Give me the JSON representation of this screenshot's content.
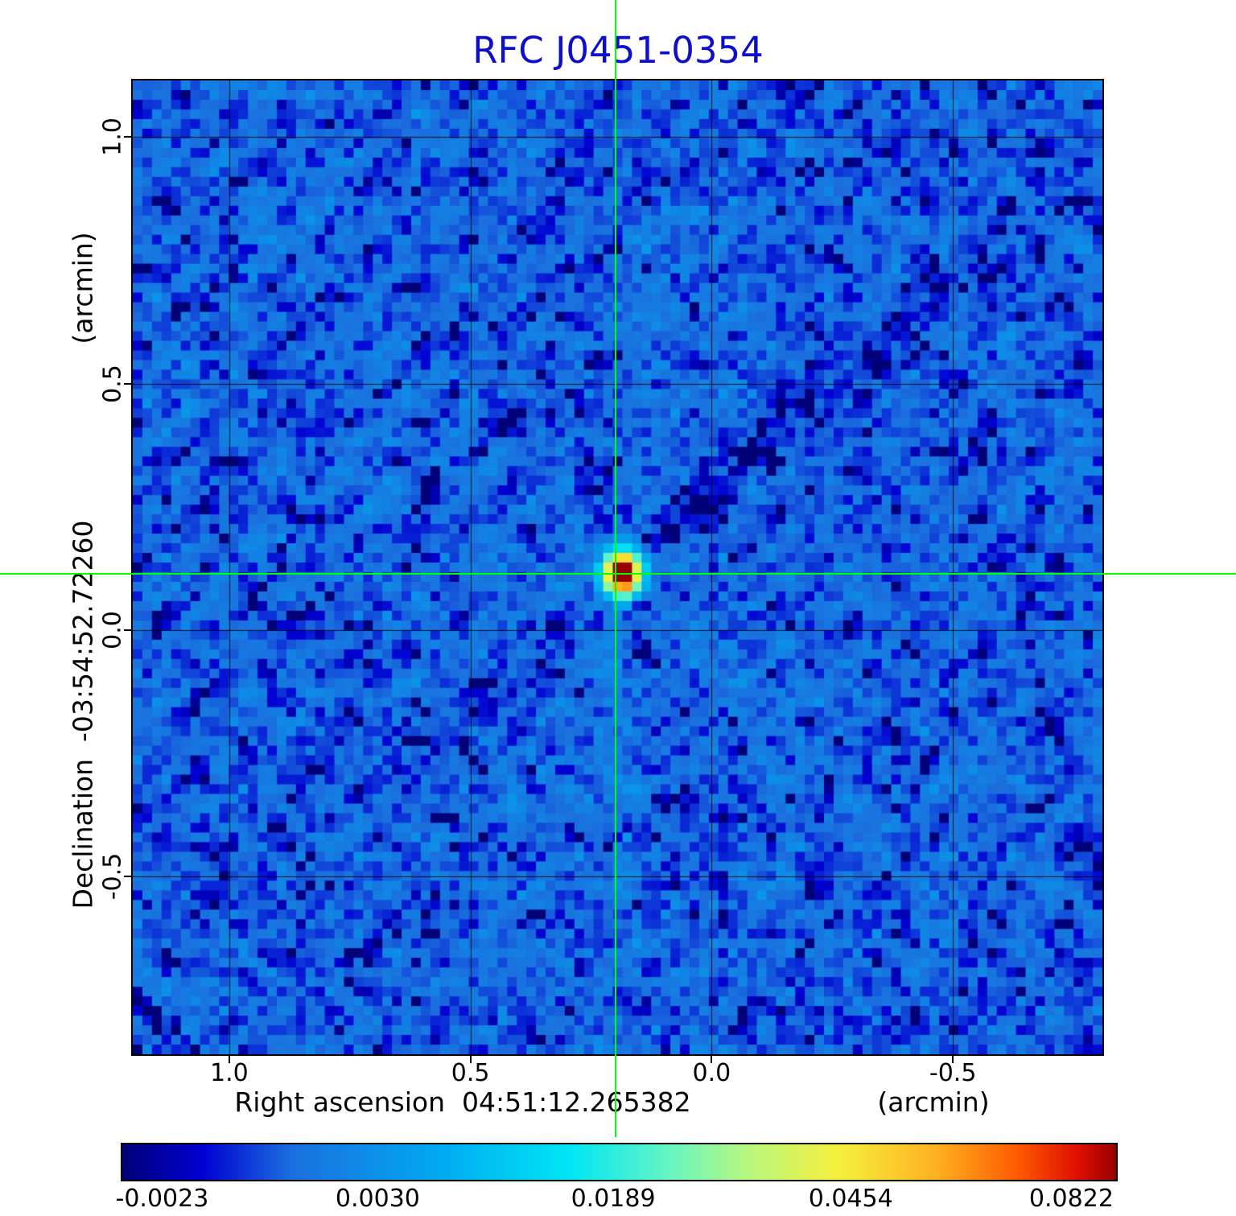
{
  "chart_data": {
    "type": "heatmap",
    "title": "RFC J0451-0354",
    "title_color": "#0D0DCE",
    "xlabel": "Right ascension  04:51:12.265382",
    "xunit": "(arcmin)",
    "ylabel": "Declination  -03:54:52.72260",
    "yunit": "(arcmin)",
    "x_range_arcmin": [
      1.2,
      -0.81
    ],
    "y_range_arcmin": [
      1.115,
      -0.86
    ],
    "x_ticks": [
      {
        "label": "1.0",
        "value": 1.0
      },
      {
        "label": "0.5",
        "value": 0.5
      },
      {
        "label": "0.0",
        "value": 0.0
      },
      {
        "label": "-0.5",
        "value": -0.5
      }
    ],
    "y_ticks": [
      {
        "label": "1.0",
        "value": 1.0
      },
      {
        "label": "0.5",
        "value": 0.5
      },
      {
        "label": "0.0",
        "value": 0.0
      },
      {
        "label": "-0.5",
        "value": -0.5
      }
    ],
    "grid": true,
    "grid_color": "rgba(0,0,0,0.85)",
    "crosshair": {
      "x_arcmin": 0.2,
      "y_arcmin": 0.115,
      "color": "#00FF00"
    },
    "source": {
      "x_arcmin": 0.195,
      "y_arcmin": 0.125,
      "peak": 0.0822,
      "sigma_x_cells": 1.15,
      "sigma_y_cells": 1.35
    },
    "noise_sigma": 0.0015,
    "intensity_scale": {
      "c2": 0.0842,
      "c1": 0.0003,
      "c0": -0.0023
    },
    "colormap_stops": [
      [
        0.0,
        "#000078"
      ],
      [
        0.08,
        "#0000D2"
      ],
      [
        0.17,
        "#1B6FDE"
      ],
      [
        0.32,
        "#00AAF0"
      ],
      [
        0.45,
        "#00E5F5"
      ],
      [
        0.55,
        "#66F5C2"
      ],
      [
        0.63,
        "#B8F77E"
      ],
      [
        0.72,
        "#F5F03C"
      ],
      [
        0.82,
        "#FFB020"
      ],
      [
        0.9,
        "#FF5A00"
      ],
      [
        0.96,
        "#E01000"
      ],
      [
        1.0,
        "#990000"
      ]
    ],
    "colorbar": {
      "tick_labels": [
        "-0.0023",
        "0.0030",
        "0.0189",
        "0.0454",
        "0.0822"
      ],
      "tick_positions": [
        0.04,
        0.257,
        0.494,
        0.733,
        0.955
      ]
    },
    "artifact_streaks": [
      {
        "angle_deg": 43,
        "amp": -0.002,
        "length_frac": 0.6,
        "width": 1.6
      },
      {
        "angle_deg": 43,
        "amp": -0.0009,
        "length_frac": 0.95,
        "width": 3.0
      },
      {
        "angle_deg": 223,
        "amp": -0.0012,
        "length_frac": 0.5,
        "width": 1.8
      },
      {
        "angle_deg": -22,
        "amp": -0.0026,
        "length_frac": 0.11,
        "width": 1.3
      },
      {
        "angle_deg": 158,
        "amp": -0.0015,
        "length_frac": 0.15,
        "width": 1.3
      },
      {
        "angle_deg": 106,
        "amp": -0.0013,
        "length_frac": 0.48,
        "width": 1.5
      },
      {
        "angle_deg": 90,
        "amp": 0.0012,
        "length_frac": 0.28,
        "width": 1.4
      },
      {
        "angle_deg": 270,
        "amp": 0.0013,
        "length_frac": 0.45,
        "width": 1.6
      },
      {
        "angle_deg": 180,
        "amp": 0.0011,
        "length_frac": 0.35,
        "width": 1.5
      },
      {
        "angle_deg": 135,
        "amp": 0.001,
        "length_frac": 0.5,
        "width": 1.8
      },
      {
        "angle_deg": 315,
        "amp": 0.0009,
        "length_frac": 0.5,
        "width": 1.8
      },
      {
        "angle_deg": 63,
        "amp": 0.0009,
        "length_frac": 0.35,
        "width": 1.5
      },
      {
        "angle_deg": 243,
        "amp": 0.0009,
        "length_frac": 0.3,
        "width": 1.5
      },
      {
        "angle_deg": 0,
        "amp": 0.0009,
        "length_frac": 0.3,
        "width": 1.4
      },
      {
        "angle_deg": 286,
        "amp": -0.0011,
        "length_frac": 0.4,
        "width": 1.5
      }
    ]
  }
}
